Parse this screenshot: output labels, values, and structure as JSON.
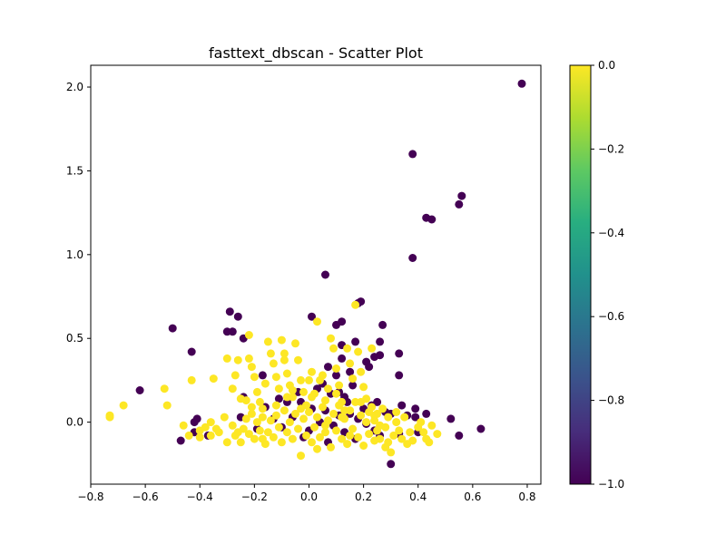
{
  "chart_data": {
    "type": "scatter",
    "title": "fasttext_dbscan - Scatter Plot",
    "xlabel": "",
    "ylabel": "",
    "xlim": [
      -0.8,
      0.85
    ],
    "ylim": [
      -0.37,
      2.13
    ],
    "xticks": [
      "−0.8",
      "−0.6",
      "−0.4",
      "−0.2",
      "0.0",
      "0.2",
      "0.4",
      "0.6",
      "0.8"
    ],
    "yticks": [
      "0.0",
      "0.5",
      "1.0",
      "1.5",
      "2.0"
    ],
    "grid": false,
    "legend": "none",
    "colorbar": {
      "label": "",
      "range": [
        -1.0,
        0.0
      ],
      "colormap": "viridis",
      "ticks": [
        "0.0",
        "−0.2",
        "−0.4",
        "−0.6",
        "−0.8",
        "−1.0"
      ]
    },
    "series": [
      {
        "cluster_label": -1,
        "color": "#440154",
        "points": [
          [
            0.78,
            2.02
          ],
          [
            0.38,
            1.6
          ],
          [
            0.56,
            1.35
          ],
          [
            0.55,
            1.3
          ],
          [
            0.43,
            1.22
          ],
          [
            0.45,
            1.21
          ],
          [
            0.38,
            0.98
          ],
          [
            0.06,
            0.88
          ],
          [
            0.19,
            0.72
          ],
          [
            0.18,
            0.71
          ],
          [
            -0.29,
            0.66
          ],
          [
            -0.26,
            0.63
          ],
          [
            0.12,
            0.6
          ],
          [
            0.1,
            0.58
          ],
          [
            0.27,
            0.58
          ],
          [
            -0.5,
            0.56
          ],
          [
            -0.3,
            0.54
          ],
          [
            -0.28,
            0.54
          ],
          [
            -0.24,
            0.5
          ],
          [
            -0.43,
            0.42
          ],
          [
            0.33,
            0.41
          ],
          [
            0.26,
            0.4
          ],
          [
            0.24,
            0.39
          ],
          [
            0.21,
            0.36
          ],
          [
            0.12,
            0.38
          ],
          [
            0.01,
            0.63
          ],
          [
            0.12,
            0.46
          ],
          [
            0.17,
            0.48
          ],
          [
            0.26,
            0.48
          ],
          [
            0.22,
            0.33
          ],
          [
            0.33,
            0.28
          ],
          [
            -0.17,
            0.28
          ],
          [
            -0.62,
            0.19
          ],
          [
            -0.24,
            0.15
          ],
          [
            0.3,
            0.05
          ],
          [
            0.39,
            0.08
          ],
          [
            0.43,
            0.05
          ],
          [
            0.39,
            0.03
          ],
          [
            0.34,
            0.1
          ],
          [
            0.36,
            0.04
          ],
          [
            0.52,
            0.02
          ],
          [
            0.63,
            -0.04
          ],
          [
            0.55,
            -0.08
          ],
          [
            0.4,
            -0.06
          ],
          [
            0.33,
            -0.07
          ],
          [
            0.3,
            -0.25
          ],
          [
            -0.42,
            0.0
          ],
          [
            -0.41,
            0.02
          ],
          [
            -0.47,
            -0.11
          ],
          [
            -0.42,
            -0.06
          ],
          [
            -0.37,
            -0.08
          ],
          [
            -0.25,
            0.03
          ],
          [
            -0.16,
            0.09
          ],
          [
            -0.08,
            0.12
          ],
          [
            0.03,
            0.2
          ],
          [
            -0.03,
            0.12
          ],
          [
            0.05,
            0.23
          ],
          [
            0.08,
            0.17
          ],
          [
            0.11,
            0.18
          ],
          [
            0.13,
            0.15
          ],
          [
            0.06,
            0.07
          ],
          [
            0.15,
            0.05
          ],
          [
            0.09,
            -0.02
          ],
          [
            0.0,
            -0.05
          ],
          [
            -0.1,
            -0.03
          ],
          [
            -0.13,
            0.02
          ],
          [
            0.18,
            0.02
          ],
          [
            0.21,
            -0.01
          ],
          [
            0.24,
            -0.05
          ],
          [
            0.26,
            -0.08
          ],
          [
            0.17,
            -0.1
          ],
          [
            0.13,
            -0.06
          ],
          [
            0.07,
            -0.12
          ],
          [
            -0.02,
            -0.09
          ],
          [
            -0.06,
            0.03
          ],
          [
            0.1,
            0.28
          ],
          [
            0.14,
            0.12
          ],
          [
            0.16,
            0.22
          ],
          [
            0.01,
            0.08
          ],
          [
            -0.04,
            0.18
          ],
          [
            0.28,
            0.06
          ],
          [
            0.23,
            0.1
          ],
          [
            0.11,
            0.04
          ],
          [
            0.04,
            0.0
          ],
          [
            -0.19,
            -0.04
          ],
          [
            -0.11,
            0.14
          ],
          [
            0.2,
            0.08
          ],
          [
            0.25,
            0.12
          ],
          [
            0.07,
            0.33
          ],
          [
            0.15,
            0.3
          ]
        ]
      },
      {
        "cluster_label": 0,
        "color": "#fde725",
        "points": [
          [
            -0.73,
            0.03
          ],
          [
            -0.73,
            0.04
          ],
          [
            -0.68,
            0.1
          ],
          [
            -0.53,
            0.2
          ],
          [
            -0.52,
            0.1
          ],
          [
            -0.46,
            -0.02
          ],
          [
            -0.43,
            0.25
          ],
          [
            -0.4,
            -0.05
          ],
          [
            -0.38,
            -0.03
          ],
          [
            -0.35,
            0.26
          ],
          [
            -0.36,
            -0.08
          ],
          [
            -0.33,
            -0.06
          ],
          [
            -0.31,
            0.03
          ],
          [
            -0.3,
            0.38
          ],
          [
            -0.28,
            0.2
          ],
          [
            -0.27,
            0.28
          ],
          [
            -0.26,
            0.37
          ],
          [
            -0.25,
            0.14
          ],
          [
            -0.23,
            0.13
          ],
          [
            -0.22,
            0.52
          ],
          [
            -0.22,
            0.38
          ],
          [
            -0.21,
            0.33
          ],
          [
            -0.2,
            0.27
          ],
          [
            -0.19,
            0.18
          ],
          [
            -0.18,
            0.12
          ],
          [
            -0.17,
            0.08
          ],
          [
            -0.16,
            0.23
          ],
          [
            -0.15,
            0.48
          ],
          [
            -0.14,
            0.41
          ],
          [
            -0.13,
            0.35
          ],
          [
            -0.12,
            0.27
          ],
          [
            -0.11,
            0.2
          ],
          [
            -0.1,
            0.49
          ],
          [
            -0.09,
            0.41
          ],
          [
            -0.09,
            0.37
          ],
          [
            -0.08,
            0.29
          ],
          [
            -0.07,
            0.22
          ],
          [
            -0.06,
            0.15
          ],
          [
            -0.05,
            0.47
          ],
          [
            -0.04,
            0.37
          ],
          [
            -0.03,
            0.25
          ],
          [
            -0.02,
            0.18
          ],
          [
            -0.01,
            0.1
          ],
          [
            0.0,
            0.25
          ],
          [
            0.01,
            0.3
          ],
          [
            0.02,
            0.17
          ],
          [
            0.03,
            0.6
          ],
          [
            0.04,
            0.25
          ],
          [
            0.05,
            0.28
          ],
          [
            0.06,
            0.13
          ],
          [
            0.07,
            0.2
          ],
          [
            0.08,
            0.5
          ],
          [
            0.09,
            0.44
          ],
          [
            0.1,
            0.32
          ],
          [
            0.11,
            0.22
          ],
          [
            0.12,
            0.12
          ],
          [
            0.13,
            0.07
          ],
          [
            0.14,
            0.44
          ],
          [
            0.15,
            0.35
          ],
          [
            0.16,
            0.26
          ],
          [
            0.17,
            0.7
          ],
          [
            0.18,
            0.42
          ],
          [
            0.19,
            0.3
          ],
          [
            0.2,
            0.21
          ],
          [
            0.21,
            0.14
          ],
          [
            0.22,
            0.06
          ],
          [
            0.23,
            0.44
          ],
          [
            0.24,
            0.01
          ],
          [
            0.25,
            -0.05
          ],
          [
            0.26,
            -0.1
          ],
          [
            0.28,
            -0.03
          ],
          [
            0.29,
            -0.12
          ],
          [
            0.3,
            -0.18
          ],
          [
            0.31,
            -0.08
          ],
          [
            0.32,
            0.0
          ],
          [
            0.33,
            -0.05
          ],
          [
            0.34,
            -0.1
          ],
          [
            0.36,
            -0.13
          ],
          [
            0.38,
            -0.11
          ],
          [
            0.4,
            -0.03
          ],
          [
            0.42,
            -0.06
          ],
          [
            0.43,
            -0.1
          ],
          [
            0.45,
            -0.02
          ],
          [
            0.47,
            -0.07
          ],
          [
            0.41,
            0.0
          ],
          [
            0.35,
            0.03
          ],
          [
            -0.44,
            -0.08
          ],
          [
            -0.4,
            -0.09
          ],
          [
            -0.34,
            -0.04
          ],
          [
            -0.3,
            -0.12
          ],
          [
            -0.28,
            -0.02
          ],
          [
            -0.27,
            -0.08
          ],
          [
            -0.25,
            -0.12
          ],
          [
            -0.24,
            -0.04
          ],
          [
            -0.23,
            0.02
          ],
          [
            -0.22,
            -0.07
          ],
          [
            -0.21,
            0.05
          ],
          [
            -0.2,
            -0.1
          ],
          [
            -0.19,
            0.0
          ],
          [
            -0.18,
            -0.05
          ],
          [
            -0.17,
            0.03
          ],
          [
            -0.16,
            -0.13
          ],
          [
            -0.15,
            -0.06
          ],
          [
            -0.14,
            0.01
          ],
          [
            -0.13,
            -0.09
          ],
          [
            -0.12,
            0.04
          ],
          [
            -0.11,
            -0.03
          ],
          [
            -0.1,
            -0.12
          ],
          [
            -0.09,
            0.07
          ],
          [
            -0.08,
            -0.06
          ],
          [
            -0.07,
            0.0
          ],
          [
            -0.06,
            -0.1
          ],
          [
            -0.05,
            0.05
          ],
          [
            -0.04,
            -0.04
          ],
          [
            -0.03,
            -0.2
          ],
          [
            -0.02,
            0.02
          ],
          [
            -0.01,
            -0.08
          ],
          [
            0.0,
            0.06
          ],
          [
            0.01,
            -0.12
          ],
          [
            0.02,
            -0.03
          ],
          [
            0.03,
            0.03
          ],
          [
            0.04,
            -0.09
          ],
          [
            0.05,
            0.09
          ],
          [
            0.06,
            -0.06
          ],
          [
            0.07,
            0.01
          ],
          [
            0.08,
            -0.15
          ],
          [
            0.09,
            0.05
          ],
          [
            0.1,
            -0.05
          ],
          [
            0.11,
            0.1
          ],
          [
            0.12,
            -0.1
          ],
          [
            0.13,
            0.02
          ],
          [
            0.14,
            -0.13
          ],
          [
            0.15,
            0.07
          ],
          [
            0.16,
            -0.04
          ],
          [
            0.17,
            0.12
          ],
          [
            0.18,
            -0.09
          ],
          [
            0.19,
            0.04
          ],
          [
            0.2,
            -0.14
          ],
          [
            0.21,
            0.0
          ],
          [
            0.22,
            -0.07
          ],
          [
            0.23,
            0.09
          ],
          [
            0.24,
            -0.11
          ],
          [
            0.25,
            0.05
          ],
          [
            0.26,
            -0.02
          ],
          [
            0.27,
            0.08
          ],
          [
            0.28,
            -0.15
          ],
          [
            -0.26,
            -0.06
          ],
          [
            -0.17,
            -0.1
          ],
          [
            -0.08,
            0.15
          ],
          [
            0.01,
            0.15
          ],
          [
            0.1,
            0.17
          ],
          [
            0.19,
            0.12
          ],
          [
            -0.12,
            0.1
          ],
          [
            -0.03,
            0.08
          ],
          [
            0.06,
            -0.02
          ],
          [
            0.15,
            -0.08
          ],
          [
            0.24,
            0.04
          ],
          [
            -0.21,
            0.09
          ],
          [
            0.03,
            -0.16
          ],
          [
            0.12,
            0.03
          ],
          [
            -0.06,
            0.19
          ],
          [
            0.32,
            0.06
          ],
          [
            -0.36,
            0.0
          ],
          [
            0.37,
            -0.06
          ],
          [
            0.44,
            -0.12
          ],
          [
            0.29,
            0.03
          ]
        ]
      }
    ]
  }
}
